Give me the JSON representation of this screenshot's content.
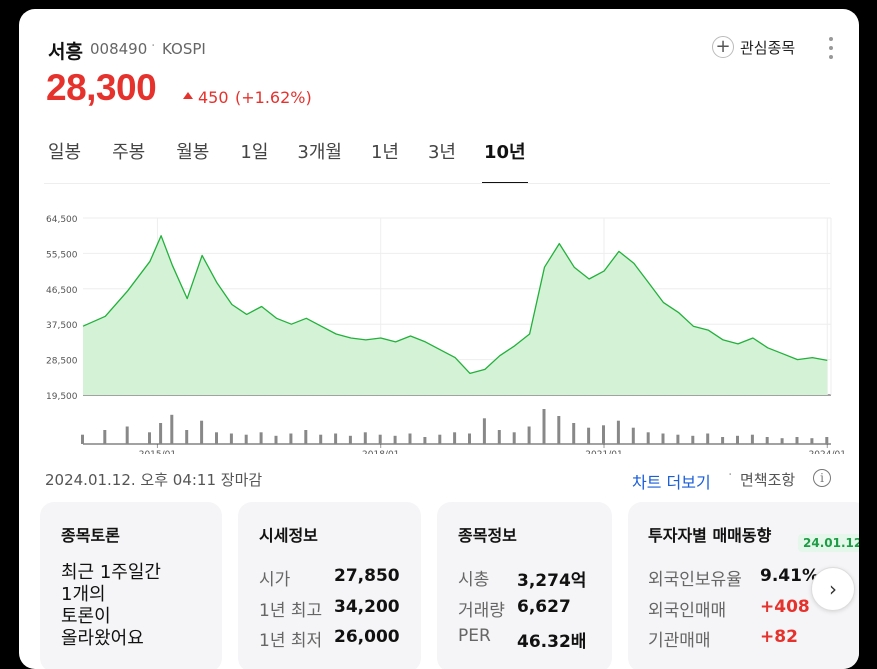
{
  "stock": {
    "name": "서흥",
    "code": "008490",
    "separator": "·",
    "market": "KOSPI",
    "price": "28,300",
    "change": "450",
    "change_pct": "(+1.62%)",
    "up_color": "#e5322d"
  },
  "watchlist": {
    "label": "관심종목",
    "icon": "plus-icon"
  },
  "tabs": [
    {
      "label": "일봉"
    },
    {
      "label": "주봉"
    },
    {
      "label": "월봉"
    },
    {
      "label": "1일"
    },
    {
      "label": "3개월"
    },
    {
      "label": "1년"
    },
    {
      "label": "3년"
    },
    {
      "label": "10년",
      "active": true
    }
  ],
  "chart_data": {
    "type": "area",
    "color": "#22b13b",
    "fill": "#d4f2d6",
    "ylim": [
      19500,
      64500
    ],
    "y_ticks": [
      "64,500",
      "55,500",
      "46,500",
      "37,500",
      "28,500",
      "19,500"
    ],
    "x_ticks": [
      "2015/01",
      "2018/01",
      "2021/01",
      "2024/01"
    ],
    "x": [
      2014.0,
      2014.3,
      2014.6,
      2014.9,
      2015.05,
      2015.2,
      2015.4,
      2015.6,
      2015.8,
      2016.0,
      2016.2,
      2016.4,
      2016.6,
      2016.8,
      2017.0,
      2017.2,
      2017.4,
      2017.6,
      2017.8,
      2018.0,
      2018.2,
      2018.4,
      2018.6,
      2018.8,
      2019.0,
      2019.2,
      2019.4,
      2019.6,
      2019.8,
      2020.0,
      2020.2,
      2020.4,
      2020.6,
      2020.8,
      2021.0,
      2021.2,
      2021.4,
      2021.6,
      2021.8,
      2022.0,
      2022.2,
      2022.4,
      2022.6,
      2022.8,
      2023.0,
      2023.2,
      2023.4,
      2023.6,
      2023.8,
      2024.0
    ],
    "y": [
      37000,
      39500,
      46000,
      53500,
      60000,
      52500,
      44000,
      55000,
      48000,
      42500,
      40000,
      42000,
      39000,
      37500,
      39000,
      37000,
      35000,
      34000,
      33500,
      34000,
      33000,
      34500,
      33000,
      31000,
      29000,
      25000,
      26000,
      29500,
      32000,
      35000,
      52000,
      58000,
      52000,
      49000,
      51000,
      56000,
      53000,
      48000,
      43000,
      40500,
      37000,
      36000,
      33500,
      32500,
      34000,
      31500,
      30000,
      28500,
      29000,
      28300
    ],
    "volume": [
      8,
      12,
      15,
      10,
      18,
      25,
      12,
      20,
      10,
      9,
      8,
      10,
      7,
      9,
      12,
      8,
      9,
      7,
      10,
      8,
      7,
      9,
      6,
      8,
      10,
      9,
      22,
      12,
      10,
      15,
      30,
      24,
      18,
      14,
      16,
      20,
      14,
      10,
      9,
      8,
      7,
      9,
      6,
      7,
      8,
      6,
      5,
      6,
      5,
      6
    ]
  },
  "status": {
    "datetime": "2024.01.12. 오후 04:11 장마감",
    "more_chart": "차트 더보기",
    "dot": "·",
    "disclaimer": "면책조항",
    "info_icon": "i"
  },
  "forum": {
    "title": "종목토론",
    "lines": [
      "최근 1주일간",
      "1개의",
      "토론이",
      "올라왔어요"
    ]
  },
  "quotes": {
    "title": "시세정보",
    "rows": [
      {
        "label": "시가",
        "value": "27,850"
      },
      {
        "label": "1년 최고",
        "value": "34,200"
      },
      {
        "label": "1년 최저",
        "value": "26,000"
      }
    ]
  },
  "stockinfo": {
    "title": "종목정보",
    "rows": [
      {
        "label": "시총",
        "value": "3,274억"
      },
      {
        "label": "거래량",
        "value": "6,627"
      },
      {
        "label": "PER",
        "value": "46.32배"
      }
    ]
  },
  "investor": {
    "title": "투자자별 매매동향",
    "date": "24.01.12",
    "rows": [
      {
        "label": "외국인보유율",
        "value": "9.41%"
      },
      {
        "label": "외국인매매",
        "value": "+408"
      },
      {
        "label": "기관매매",
        "value": "+82"
      }
    ]
  },
  "next_icon": "chevron-right-icon",
  "next_glyph": "›"
}
